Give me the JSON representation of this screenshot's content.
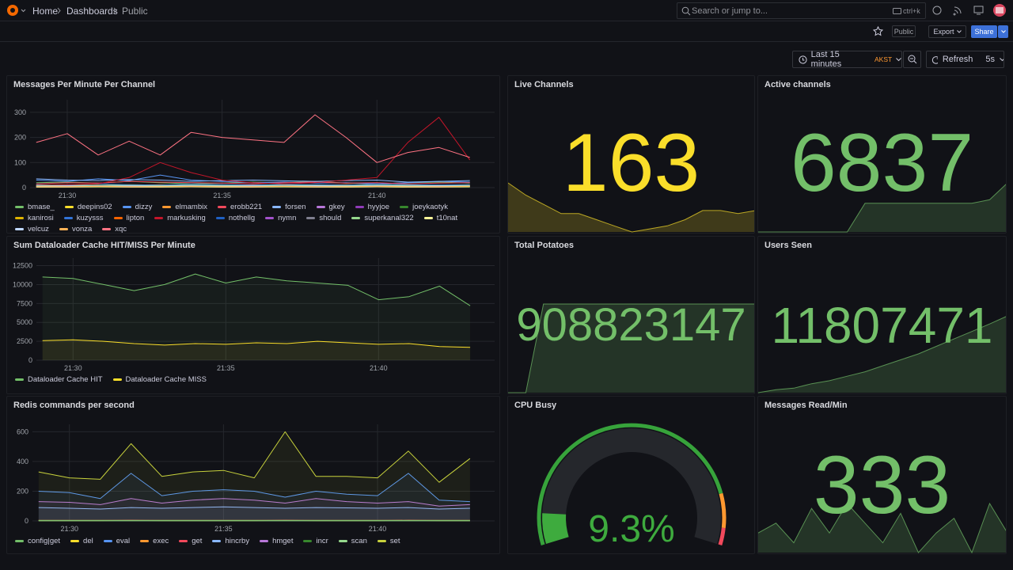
{
  "header": {
    "breadcrumbs": [
      "Home",
      "Dashboards",
      "Public"
    ],
    "search": {
      "placeholder": "Search or jump to...",
      "shortcut": "ctrl+k"
    }
  },
  "toolbar": {
    "badge": "Public",
    "export": "Export",
    "share": "Share"
  },
  "time_picker": {
    "range": "Last 15 minutes",
    "timezone": "AKST",
    "refresh": "Refresh",
    "interval": "5s"
  },
  "panels": [
    {
      "type": "timeseries",
      "title": "Messages Per Minute Per Channel",
      "fill": false,
      "xlim": [
        28.8,
        43.8
      ],
      "xticks": [
        {
          "value": 30,
          "label": "21:30"
        },
        {
          "value": 35,
          "label": "21:35"
        },
        {
          "value": 40,
          "label": "21:40"
        }
      ],
      "ylim": [
        0,
        350
      ],
      "yticks": [
        0,
        100,
        200,
        300
      ],
      "x": [
        29,
        30,
        31,
        32,
        33,
        34,
        35,
        36,
        37,
        38,
        39,
        40,
        41,
        42,
        43
      ],
      "series": [
        {
          "name": "bmase_",
          "color": "#73bf69",
          "values": [
            20,
            22,
            18,
            25,
            20,
            15,
            18,
            22,
            20,
            25,
            18,
            15,
            20,
            22,
            18
          ]
        },
        {
          "name": "deepins02",
          "color": "#fade2a",
          "values": [
            5,
            8,
            6,
            5,
            7,
            6,
            5,
            8,
            6,
            5,
            7,
            6,
            5,
            6,
            5
          ]
        },
        {
          "name": "dizzy",
          "color": "#5794f2",
          "values": [
            30,
            25,
            35,
            28,
            50,
            30,
            25,
            20,
            22,
            18,
            20,
            15,
            20,
            25,
            22
          ]
        },
        {
          "name": "elmambix",
          "color": "#ff9830",
          "values": [
            10,
            12,
            8,
            10,
            12,
            9,
            10,
            11,
            8,
            10,
            12,
            9,
            10,
            8,
            10
          ]
        },
        {
          "name": "erobb221",
          "color": "#f2495c",
          "values": [
            15,
            20,
            18,
            25,
            22,
            20,
            18,
            15,
            20,
            22,
            18,
            20,
            15,
            18,
            20
          ]
        },
        {
          "name": "forsen",
          "color": "#8ab8ff",
          "values": [
            35,
            30,
            28,
            32,
            30,
            25,
            28,
            30,
            27,
            25,
            28,
            30,
            22,
            25,
            28
          ]
        },
        {
          "name": "gkey",
          "color": "#b877d9",
          "values": [
            5,
            6,
            5,
            7,
            5,
            6,
            5,
            6,
            5,
            7,
            5,
            6,
            5,
            6,
            5
          ]
        },
        {
          "name": "hyyjoe",
          "color": "#8f3bb8",
          "values": [
            3,
            4,
            3,
            5,
            4,
            3,
            4,
            5,
            3,
            4,
            5,
            3,
            4,
            3,
            4
          ]
        },
        {
          "name": "joeykaotyk",
          "color": "#37872d",
          "values": [
            2,
            3,
            2,
            3,
            2,
            3,
            2,
            3,
            2,
            3,
            2,
            3,
            2,
            3,
            2
          ]
        },
        {
          "name": "kanirosi",
          "color": "#e0b400",
          "values": [
            8,
            10,
            9,
            12,
            10,
            9,
            8,
            10,
            12,
            9,
            10,
            8,
            9,
            10,
            8
          ]
        },
        {
          "name": "kuzysss",
          "color": "#3274d9",
          "values": [
            12,
            10,
            15,
            12,
            10,
            14,
            12,
            10,
            13,
            12,
            10,
            14,
            12,
            10,
            12
          ]
        },
        {
          "name": "lipton",
          "color": "#fa6400",
          "values": [
            6,
            5,
            7,
            6,
            5,
            6,
            7,
            5,
            6,
            5,
            7,
            6,
            5,
            6,
            5
          ]
        },
        {
          "name": "markusking",
          "color": "#c4162a",
          "values": [
            10,
            12,
            15,
            40,
            100,
            60,
            30,
            20,
            15,
            20,
            30,
            40,
            180,
            280,
            110
          ]
        },
        {
          "name": "nothellg",
          "color": "#1f60c4",
          "values": [
            4,
            5,
            4,
            6,
            4,
            5,
            4,
            5,
            4,
            6,
            4,
            5,
            4,
            5,
            4
          ]
        },
        {
          "name": "nymn",
          "color": "#a352cc",
          "values": [
            7,
            6,
            8,
            7,
            6,
            8,
            7,
            6,
            8,
            7,
            6,
            8,
            7,
            6,
            7
          ]
        },
        {
          "name": "should",
          "color": "#808090",
          "values": [
            3,
            3,
            4,
            3,
            3,
            4,
            3,
            3,
            4,
            3,
            3,
            4,
            3,
            3,
            4
          ]
        },
        {
          "name": "superkanal322",
          "color": "#96d98d",
          "values": [
            9,
            8,
            10,
            9,
            8,
            10,
            9,
            8,
            10,
            9,
            8,
            10,
            9,
            8,
            9
          ]
        },
        {
          "name": "t10nat",
          "color": "#fff899",
          "values": [
            2,
            2,
            3,
            2,
            2,
            3,
            2,
            2,
            3,
            2,
            2,
            3,
            2,
            2,
            3
          ]
        },
        {
          "name": "velcuz",
          "color": "#c0d8ff",
          "values": [
            6,
            7,
            6,
            7,
            6,
            7,
            6,
            7,
            6,
            7,
            6,
            7,
            6,
            7,
            6
          ]
        },
        {
          "name": "vonza",
          "color": "#ffb357",
          "values": [
            4,
            4,
            5,
            4,
            4,
            5,
            4,
            4,
            5,
            4,
            4,
            5,
            4,
            4,
            5
          ]
        },
        {
          "name": "xqc",
          "color": "#ff7383",
          "values": [
            180,
            215,
            130,
            185,
            130,
            220,
            200,
            190,
            180,
            290,
            200,
            100,
            140,
            160,
            120
          ]
        }
      ]
    },
    {
      "type": "stat",
      "title": "Live Channels",
      "value": 163,
      "color": "#fade2a",
      "sparkline": [
        172,
        168,
        165,
        162,
        162,
        160,
        158,
        156,
        157,
        158,
        160,
        163,
        163,
        162,
        163
      ]
    },
    {
      "type": "stat",
      "title": "Active channels",
      "value": 6837,
      "color": "#73bf69",
      "sparkline": [
        6700,
        6700,
        6700,
        6700,
        6700,
        6700,
        6780,
        6780,
        6780,
        6780,
        6780,
        6780,
        6780,
        6790,
        6837
      ]
    },
    {
      "type": "timeseries",
      "title": "Sum Dataloader Cache HIT/MISS Per Minute",
      "fill": true,
      "xlim": [
        28.8,
        43.8
      ],
      "xticks": [
        {
          "value": 30,
          "label": "21:30"
        },
        {
          "value": 35,
          "label": "21:35"
        },
        {
          "value": 40,
          "label": "21:40"
        }
      ],
      "ylim": [
        0,
        13500
      ],
      "yticks": [
        0,
        2500,
        5000,
        7500,
        10000,
        12500
      ],
      "x": [
        29,
        30,
        31,
        32,
        33,
        34,
        35,
        36,
        37,
        38,
        39,
        40,
        41,
        42,
        43
      ],
      "series": [
        {
          "name": "Dataloader Cache HIT",
          "color": "#73bf69",
          "values": [
            11000,
            10800,
            10000,
            9200,
            10000,
            11400,
            10200,
            11000,
            10500,
            10200,
            9900,
            8000,
            8400,
            9800,
            7200
          ]
        },
        {
          "name": "Dataloader Cache MISS",
          "color": "#fade2a",
          "values": [
            2600,
            2700,
            2500,
            2200,
            2000,
            2200,
            2100,
            2300,
            2200,
            2500,
            2300,
            2100,
            2200,
            1800,
            1700
          ]
        }
      ]
    },
    {
      "type": "stat",
      "title": "Total Potatoes",
      "value": 908823147,
      "color": "#73bf69",
      "sparkline": [
        0,
        0,
        908800000,
        908802000,
        908804000,
        908806000,
        908808000,
        908810000,
        908812000,
        908814000,
        908816000,
        908818000,
        908820000,
        908822000,
        908823147
      ]
    },
    {
      "type": "stat",
      "title": "Users Seen",
      "value": 11807471,
      "color": "#73bf69",
      "sparkline": [
        11804900,
        11805000,
        11805050,
        11805200,
        11805300,
        11805450,
        11805600,
        11805800,
        11806000,
        11806200,
        11806450,
        11806700,
        11806950,
        11807200,
        11807471
      ]
    },
    {
      "type": "timeseries",
      "title": "Redis commands per second",
      "fill": true,
      "xlim": [
        28.8,
        43.8
      ],
      "xticks": [
        {
          "value": 30,
          "label": "21:30"
        },
        {
          "value": 35,
          "label": "21:35"
        },
        {
          "value": 40,
          "label": "21:40"
        }
      ],
      "ylim": [
        0,
        650
      ],
      "yticks": [
        0,
        200,
        400,
        600
      ],
      "x": [
        29,
        30,
        31,
        32,
        33,
        34,
        35,
        36,
        37,
        38,
        39,
        40,
        41,
        42,
        43
      ],
      "series": [
        {
          "name": "config|get",
          "color": "#73bf69",
          "values": [
            1,
            1,
            1,
            1,
            1,
            1,
            1,
            1,
            1,
            1,
            1,
            1,
            1,
            1,
            1
          ]
        },
        {
          "name": "del",
          "color": "#fade2a",
          "values": [
            2,
            2,
            2,
            3,
            2,
            2,
            2,
            2,
            3,
            2,
            2,
            2,
            3,
            2,
            2
          ]
        },
        {
          "name": "eval",
          "color": "#5794f2",
          "values": [
            200,
            190,
            150,
            320,
            170,
            200,
            210,
            200,
            160,
            200,
            180,
            170,
            320,
            140,
            130
          ]
        },
        {
          "name": "exec",
          "color": "#ff9830",
          "values": [
            3,
            3,
            3,
            3,
            3,
            3,
            3,
            3,
            3,
            3,
            3,
            3,
            3,
            3,
            3
          ]
        },
        {
          "name": "get",
          "color": "#f2495c",
          "values": [
            5,
            5,
            5,
            6,
            5,
            5,
            5,
            5,
            6,
            5,
            5,
            5,
            6,
            5,
            5
          ]
        },
        {
          "name": "hincrby",
          "color": "#8ab8ff",
          "values": [
            90,
            85,
            80,
            90,
            85,
            90,
            95,
            90,
            85,
            90,
            88,
            85,
            90,
            80,
            85
          ]
        },
        {
          "name": "hmget",
          "color": "#b877d9",
          "values": [
            130,
            125,
            110,
            150,
            120,
            140,
            150,
            140,
            120,
            150,
            130,
            120,
            130,
            100,
            110
          ]
        },
        {
          "name": "incr",
          "color": "#37872d",
          "values": [
            4,
            4,
            4,
            4,
            4,
            4,
            4,
            4,
            4,
            4,
            4,
            4,
            4,
            4,
            4
          ]
        },
        {
          "name": "scan",
          "color": "#96d98d",
          "values": [
            1,
            1,
            1,
            1,
            1,
            1,
            1,
            1,
            1,
            1,
            1,
            1,
            1,
            1,
            1
          ]
        },
        {
          "name": "set",
          "color": "#c8d23c",
          "values": [
            330,
            290,
            280,
            520,
            300,
            330,
            340,
            290,
            600,
            300,
            300,
            290,
            470,
            260,
            420
          ]
        }
      ]
    },
    {
      "type": "gauge",
      "title": "CPU Busy",
      "value": 9.3,
      "value_label": "9.3%",
      "min": 0,
      "max": 100,
      "color": "#3eab3e",
      "thresholds": [
        {
          "value": 0,
          "color": "#37a33b"
        },
        {
          "value": 85,
          "color": "#ff9830"
        },
        {
          "value": 95,
          "color": "#f2495c"
        }
      ]
    },
    {
      "type": "stat",
      "title": "Messages Read/Min",
      "value": 333,
      "color": "#73bf69",
      "sparkline": [
        320,
        330,
        310,
        345,
        320,
        350,
        330,
        310,
        340,
        300,
        320,
        335,
        300,
        350,
        320
      ]
    }
  ]
}
